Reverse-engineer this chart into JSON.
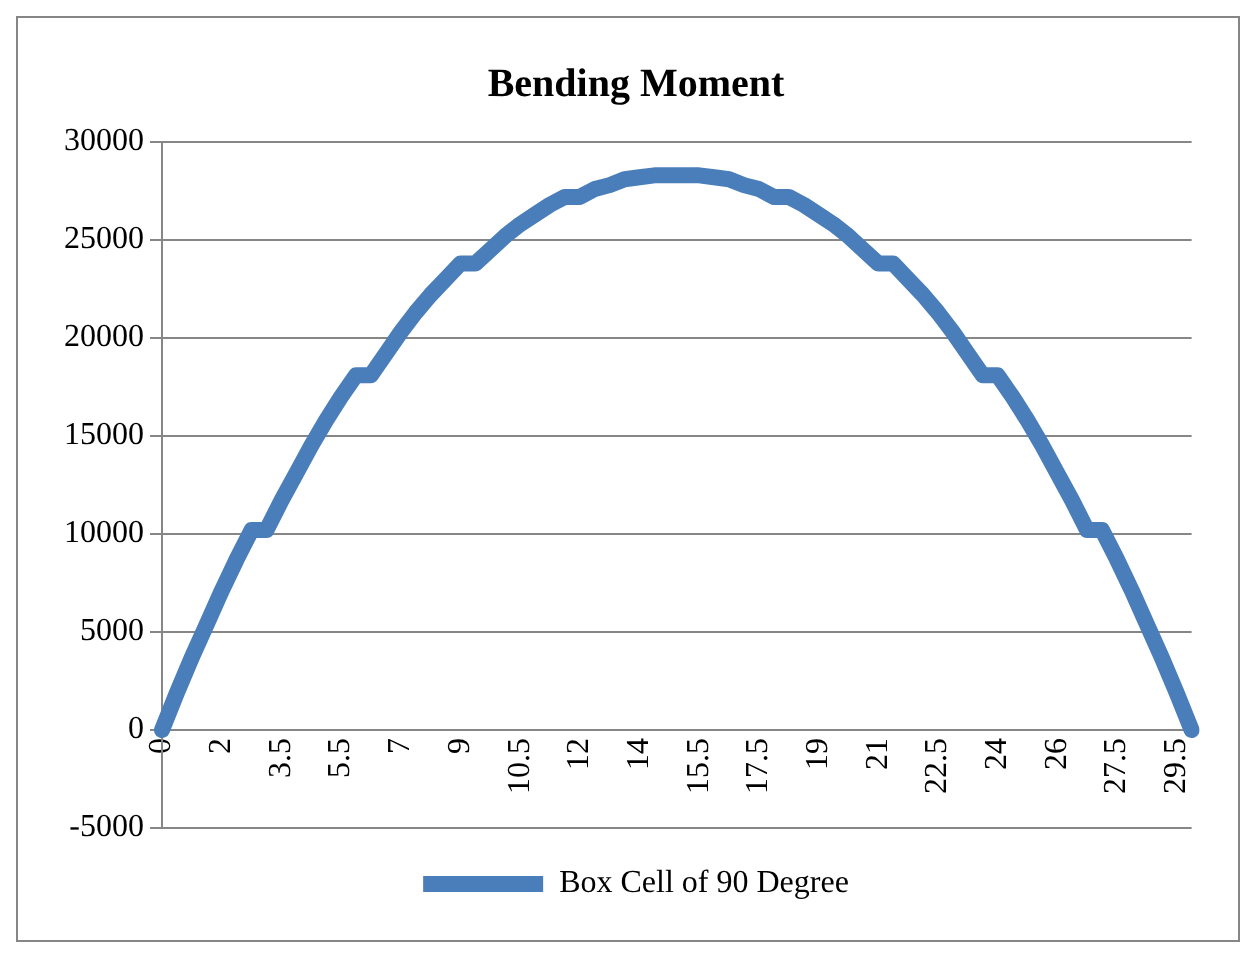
{
  "chart_data": {
    "type": "line",
    "title": "Bending Moment",
    "categories": [
      "0",
      null,
      null,
      null,
      "2",
      null,
      null,
      null,
      "3.5",
      null,
      null,
      null,
      "5.5",
      null,
      null,
      null,
      "7",
      null,
      null,
      null,
      "9",
      null,
      null,
      null,
      "10.5",
      null,
      null,
      null,
      "12",
      null,
      null,
      null,
      "14",
      null,
      null,
      null,
      "15.5",
      null,
      null,
      null,
      "17.5",
      null,
      null,
      null,
      "19",
      null,
      null,
      null,
      "21",
      null,
      null,
      null,
      "22.5",
      null,
      null,
      null,
      "24",
      null,
      null,
      null,
      "26",
      null,
      null,
      null,
      "27.5",
      null,
      null,
      null,
      "29.5",
      null
    ],
    "series": [
      {
        "name": "Box Cell of 90 Degree",
        "color": "#4a7ebb",
        "values": [
          0,
          1900,
          3700,
          5400,
          7100,
          8700,
          10200,
          10200,
          11700,
          13100,
          14500,
          15800,
          17000,
          18100,
          18100,
          19200,
          20300,
          21300,
          22200,
          23000,
          23800,
          23800,
          24500,
          25200,
          25800,
          26300,
          26800,
          27200,
          27200,
          27600,
          27800,
          28100,
          28200,
          28300,
          28300,
          28300,
          28300,
          28200,
          28100,
          27800,
          27600,
          27200,
          27200,
          26800,
          26300,
          25800,
          25200,
          24500,
          23800,
          23800,
          23000,
          22200,
          21300,
          20300,
          19200,
          18100,
          18100,
          17000,
          15800,
          14500,
          13100,
          11700,
          10200,
          10200,
          8700,
          7100,
          5400,
          3700,
          1900,
          0
        ]
      }
    ],
    "ylim": [
      -5000,
      30000
    ],
    "yticks": [
      -5000,
      0,
      5000,
      10000,
      15000,
      20000,
      25000,
      30000
    ],
    "grid": "y",
    "legend": "bottom",
    "marker": "none",
    "line_style": "solid"
  }
}
